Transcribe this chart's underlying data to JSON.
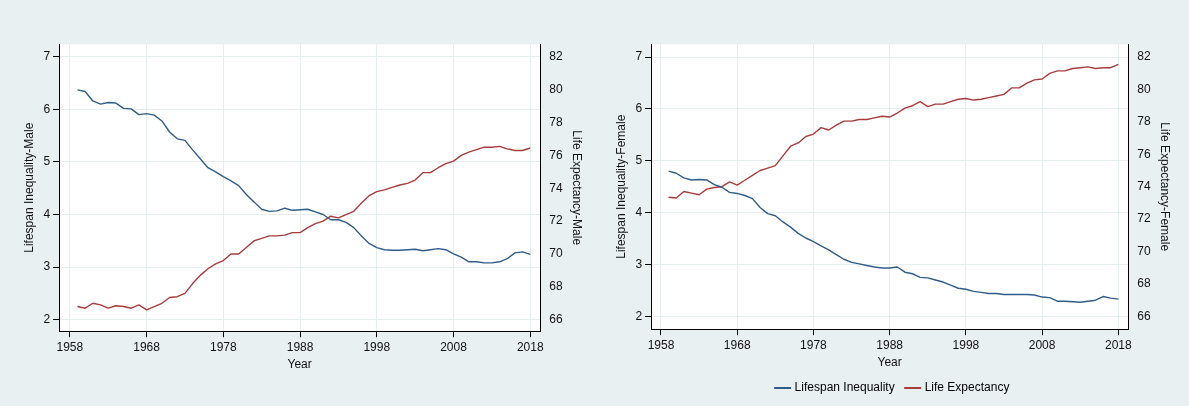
{
  "chart_data": [
    {
      "type": "line",
      "xlabel": "Year",
      "ylabel": "Lifespan Inequality-Male",
      "y2label": "Life Expectancy-Male",
      "x": [
        1959,
        1960,
        1961,
        1962,
        1963,
        1964,
        1965,
        1966,
        1967,
        1968,
        1969,
        1970,
        1971,
        1972,
        1973,
        1974,
        1975,
        1976,
        1977,
        1978,
        1979,
        1980,
        1981,
        1982,
        1983,
        1984,
        1985,
        1986,
        1987,
        1988,
        1989,
        1990,
        1991,
        1992,
        1993,
        1994,
        1995,
        1996,
        1997,
        1998,
        1999,
        2000,
        2001,
        2002,
        2003,
        2004,
        2005,
        2006,
        2007,
        2008,
        2009,
        2010,
        2011,
        2012,
        2013,
        2014,
        2015,
        2016,
        2017,
        2018
      ],
      "series": [
        {
          "color": "#2f5d8a",
          "values": [
            6.37,
            6.34,
            6.16,
            6.1,
            6.13,
            6.12,
            6.02,
            6.01,
            5.9,
            5.92,
            5.89,
            5.78,
            5.57,
            5.44,
            5.41,
            5.23,
            5.06,
            4.89,
            4.81,
            4.72,
            4.64,
            4.55,
            4.38,
            4.24,
            4.1,
            4.06,
            4.07,
            4.12,
            4.08,
            4.09,
            4.1,
            4.05,
            4.0,
            3.9,
            3.9,
            3.85,
            3.75,
            3.59,
            3.45,
            3.37,
            3.33,
            3.32,
            3.32,
            3.33,
            3.34,
            3.31,
            3.33,
            3.35,
            3.33,
            3.25,
            3.19,
            3.1,
            3.1,
            3.08,
            3.08,
            3.1,
            3.16,
            3.27,
            3.29,
            3.24
          ]
        },
        {
          "color": "#a83c3c",
          "axis": "y2",
          "values": [
            66.8,
            66.7,
            67.0,
            66.9,
            66.7,
            66.85,
            66.8,
            66.7,
            66.9,
            66.6,
            66.8,
            67.0,
            67.35,
            67.4,
            67.6,
            68.2,
            68.7,
            69.1,
            69.4,
            69.6,
            70.0,
            70.0,
            70.4,
            70.8,
            70.95,
            71.1,
            71.1,
            71.15,
            71.3,
            71.3,
            71.6,
            71.85,
            72.0,
            72.3,
            72.2,
            72.4,
            72.6,
            73.1,
            73.55,
            73.8,
            73.9,
            74.05,
            74.2,
            74.3,
            74.5,
            74.95,
            74.95,
            75.25,
            75.5,
            75.65,
            76.0,
            76.2,
            76.35,
            76.5,
            76.5,
            76.55,
            76.4,
            76.3,
            76.3,
            76.45
          ]
        }
      ],
      "xlim": [
        1956.6,
        2019.3
      ],
      "xticks": [
        1958,
        1968,
        1978,
        1988,
        1998,
        2008,
        2018
      ],
      "ylim": [
        1.78,
        7.24
      ],
      "yticks": [
        2,
        3,
        4,
        5,
        6,
        7
      ],
      "y2lim": [
        65.3,
        82.77
      ],
      "y2ticks": [
        66,
        68,
        70,
        72,
        74,
        76,
        78,
        80,
        82
      ],
      "grid": true,
      "legend": false,
      "marker": "none",
      "line_style": "solid"
    },
    {
      "type": "line",
      "xlabel": "Year",
      "ylabel": "Lifespan Inequality-Female",
      "y2label": "Life Expectancy-Female",
      "x": [
        1959,
        1960,
        1961,
        1962,
        1963,
        1964,
        1965,
        1966,
        1967,
        1968,
        1969,
        1970,
        1971,
        1972,
        1973,
        1974,
        1975,
        1976,
        1977,
        1978,
        1979,
        1980,
        1981,
        1982,
        1983,
        1984,
        1985,
        1986,
        1987,
        1988,
        1989,
        1990,
        1991,
        1992,
        1993,
        1994,
        1995,
        1996,
        1997,
        1998,
        1999,
        2000,
        2001,
        2002,
        2003,
        2004,
        2005,
        2006,
        2007,
        2008,
        2009,
        2010,
        2011,
        2012,
        2013,
        2014,
        2015,
        2016,
        2017,
        2018
      ],
      "series": [
        {
          "name": "Lifespan Inequality",
          "color": "#2f5d8a",
          "values": [
            4.8,
            4.76,
            4.67,
            4.63,
            4.64,
            4.63,
            4.54,
            4.49,
            4.39,
            4.37,
            4.33,
            4.27,
            4.1,
            3.98,
            3.94,
            3.82,
            3.72,
            3.6,
            3.51,
            3.44,
            3.36,
            3.28,
            3.19,
            3.1,
            3.04,
            3.01,
            2.98,
            2.95,
            2.93,
            2.93,
            2.95,
            2.85,
            2.82,
            2.75,
            2.74,
            2.7,
            2.66,
            2.6,
            2.54,
            2.52,
            2.48,
            2.46,
            2.44,
            2.44,
            2.42,
            2.42,
            2.42,
            2.42,
            2.41,
            2.37,
            2.36,
            2.29,
            2.29,
            2.28,
            2.27,
            2.29,
            2.31,
            2.38,
            2.35,
            2.33
          ]
        },
        {
          "name": "Life Expectancy",
          "color": "#a83c3c",
          "axis": "y2",
          "values": [
            73.35,
            73.3,
            73.7,
            73.6,
            73.5,
            73.85,
            73.95,
            74.0,
            74.3,
            74.1,
            74.4,
            74.7,
            75.0,
            75.15,
            75.3,
            75.9,
            76.5,
            76.7,
            77.1,
            77.25,
            77.65,
            77.5,
            77.8,
            78.05,
            78.05,
            78.15,
            78.15,
            78.25,
            78.35,
            78.3,
            78.55,
            78.85,
            79.0,
            79.25,
            78.95,
            79.1,
            79.1,
            79.25,
            79.4,
            79.45,
            79.35,
            79.4,
            79.5,
            79.6,
            79.7,
            80.1,
            80.1,
            80.4,
            80.6,
            80.65,
            81.0,
            81.15,
            81.15,
            81.3,
            81.35,
            81.4,
            81.3,
            81.35,
            81.35,
            81.55
          ]
        }
      ],
      "xlim": [
        1956.7,
        2019.3
      ],
      "xticks": [
        1958,
        1968,
        1978,
        1988,
        1998,
        2008,
        2018
      ],
      "ylim": [
        1.75,
        7.25
      ],
      "yticks": [
        2,
        3,
        4,
        5,
        6,
        7
      ],
      "y2lim": [
        65.2,
        82.8
      ],
      "y2ticks": [
        66,
        68,
        70,
        72,
        74,
        76,
        78,
        80,
        82
      ],
      "grid": true,
      "legend": "bottom",
      "marker": "none",
      "line_style": "solid"
    }
  ]
}
